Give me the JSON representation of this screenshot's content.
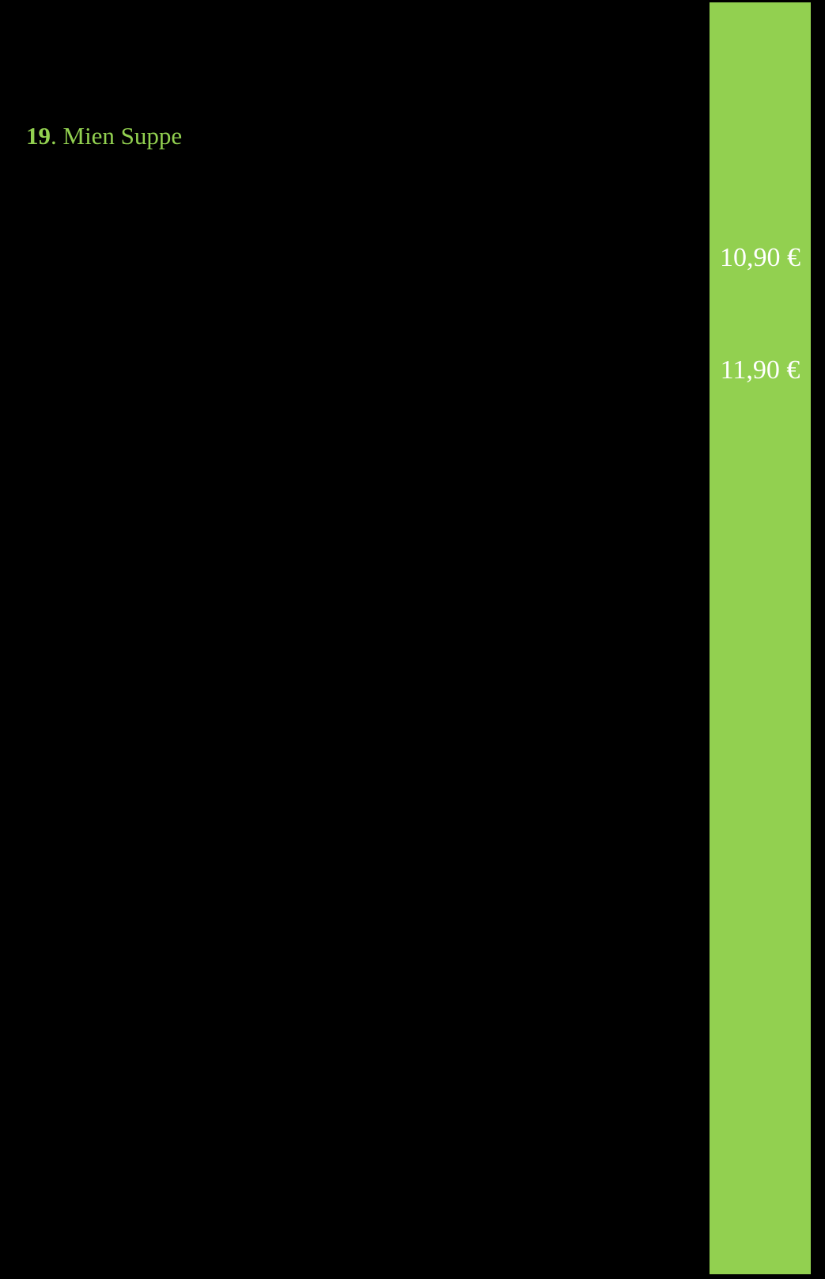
{
  "colors": {
    "page_background": "#000000",
    "accent_green": "#92d050",
    "price_text": "#ffffff"
  },
  "menu_item": {
    "number": "19",
    "separator": ". ",
    "name": "Mien Suppe"
  },
  "price_column": {
    "prices": [
      "10,90 €",
      "11,90 €"
    ]
  }
}
